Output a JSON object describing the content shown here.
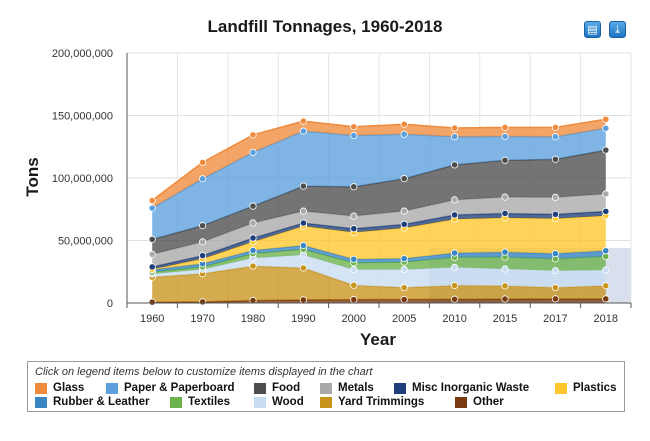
{
  "colors": {
    "Glass": "#f08a3c",
    "Paper & Paperboard": "#5b9fdc",
    "Food": "#4d4d4d",
    "Metals": "#a9a9a9",
    "Misc Inorganic Waste": "#1f3f7a",
    "Plastics": "#ffc72c",
    "Rubber & Leather": "#3a86c4",
    "Textiles": "#6bb24a",
    "Wood": "#c8dcf2",
    "Yard Trimmings": "#c8941c",
    "Other": "#7a3a10"
  },
  "toolbar": {
    "print_icon": "printer-icon",
    "download_icon": "download-icon"
  },
  "legend": {
    "hint": "Click on legend items below to customize items displayed in the chart",
    "items": [
      "Glass",
      "Paper & Paperboard",
      "Food",
      "Metals",
      "Misc Inorganic Waste",
      "Plastics",
      "Rubber & Leather",
      "Textiles",
      "Wood",
      "Yard Trimmings",
      "Other"
    ]
  },
  "chart_data": {
    "type": "area",
    "stacked": true,
    "title": "Landfill Tonnages, 1960-2018",
    "xlabel": "Year",
    "ylabel": "Tons",
    "ylim": [
      0,
      200000000
    ],
    "yticks": [
      0,
      50000000,
      100000000,
      150000000,
      200000000
    ],
    "ytick_labels": [
      "0",
      "50,000,000",
      "100,000,000",
      "150,000,000",
      "200,000,000"
    ],
    "categories": [
      "1960",
      "1970",
      "1980",
      "1990",
      "2000",
      "2005",
      "2010",
      "2015",
      "2017",
      "2018"
    ],
    "grid": true,
    "legend_position": "bottom",
    "series": [
      {
        "name": "Other",
        "values": [
          700000,
          900000,
          2000000,
          2500000,
          2700000,
          2800000,
          3000000,
          3200000,
          3300000,
          3300000
        ]
      },
      {
        "name": "Yard Trimmings",
        "values": [
          20000000,
          22500000,
          27500000,
          25500000,
          11500000,
          9500000,
          11000000,
          10500000,
          9000000,
          10500000
        ]
      },
      {
        "name": "Wood",
        "values": [
          2500000,
          3500000,
          6500000,
          10500000,
          12500000,
          14500000,
          14500000,
          13500000,
          13500000,
          12500000
        ]
      },
      {
        "name": "Textiles",
        "values": [
          1500000,
          2000000,
          3500000,
          4500000,
          5500000,
          6000000,
          8000000,
          9500000,
          9500000,
          11000000
        ]
      },
      {
        "name": "Rubber & Leather",
        "values": [
          1800000,
          2500000,
          2500000,
          3000000,
          2800000,
          2700000,
          3500000,
          4000000,
          4200000,
          4500000
        ]
      },
      {
        "name": "Plastics",
        "values": [
          400000,
          4000000,
          7000000,
          15500000,
          21500000,
          24500000,
          27000000,
          27500000,
          28000000,
          28000000
        ]
      },
      {
        "name": "Misc Inorganic Waste",
        "values": [
          2000000,
          2500000,
          3000000,
          2500000,
          3000000,
          3000000,
          3500000,
          3500000,
          3500000,
          3500000
        ]
      },
      {
        "name": "Metals",
        "values": [
          10000000,
          11000000,
          12000000,
          9500000,
          10000000,
          10500000,
          12000000,
          13000000,
          13500000,
          14000000
        ]
      },
      {
        "name": "Food",
        "values": [
          12000000,
          13000000,
          13500000,
          20000000,
          23500000,
          26000000,
          28000000,
          29500000,
          30500000,
          35000000
        ]
      },
      {
        "name": "Paper & Paperboard",
        "values": [
          25000000,
          37500000,
          43000000,
          44000000,
          41000000,
          35500000,
          22500000,
          19000000,
          18000000,
          17500000
        ]
      },
      {
        "name": "Glass",
        "values": [
          6100000,
          13100000,
          14000000,
          8000000,
          7000000,
          8000000,
          7000000,
          7300000,
          7500000,
          7200000
        ]
      }
    ]
  }
}
